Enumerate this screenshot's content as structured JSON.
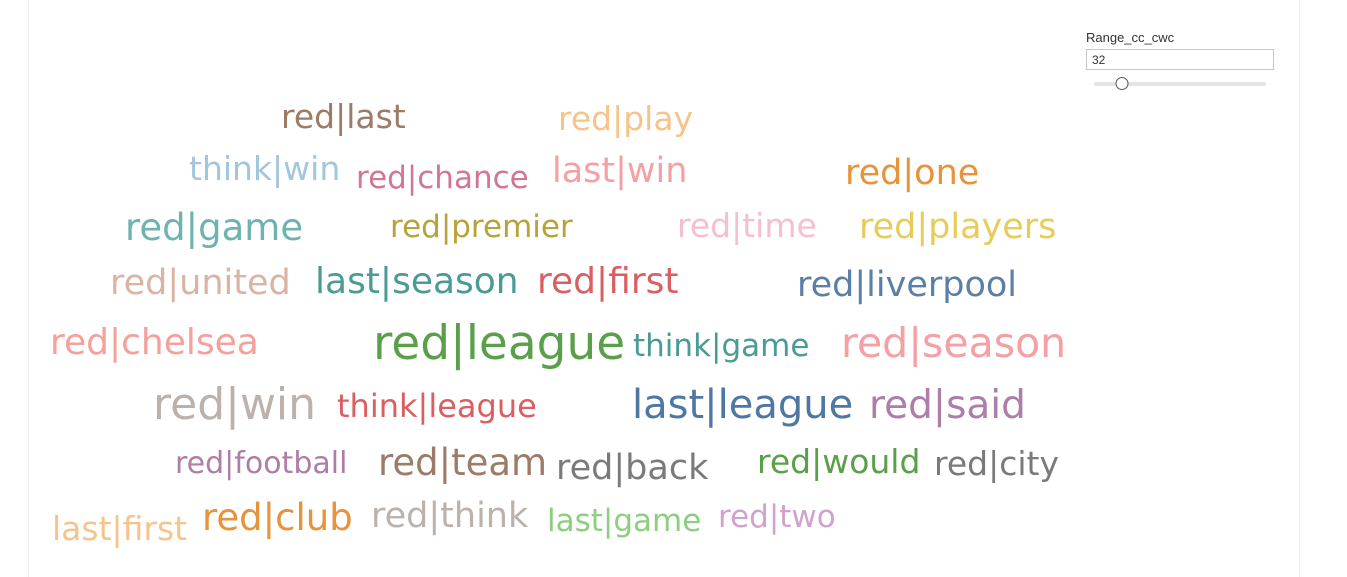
{
  "parameter": {
    "title": "Range_cc_cwc",
    "value": "32",
    "slider_fraction": 0.16
  },
  "word_cloud": {
    "words": [
      {
        "text": "red|last",
        "color": "#9c7b68"
      },
      {
        "text": "red|play",
        "color": "#f6c48a"
      },
      {
        "text": "think|win",
        "color": "#a3c6df"
      },
      {
        "text": "red|chance",
        "color": "#d27596"
      },
      {
        "text": "last|win",
        "color": "#f4a0a4"
      },
      {
        "text": "red|one",
        "color": "#e8923a"
      },
      {
        "text": "red|game",
        "color": "#6fb3ae"
      },
      {
        "text": "red|premier",
        "color": "#b7a33b"
      },
      {
        "text": "red|time",
        "color": "#f6bfcd"
      },
      {
        "text": "red|players",
        "color": "#e8cc5a"
      },
      {
        "text": "red|united",
        "color": "#d9b4a4"
      },
      {
        "text": "last|season",
        "color": "#4a9a95"
      },
      {
        "text": "red|first",
        "color": "#d95f63"
      },
      {
        "text": "red|liverpool",
        "color": "#5b7fa6"
      },
      {
        "text": "red|chelsea",
        "color": "#f4a19c"
      },
      {
        "text": "red|league",
        "color": "#5a9f4a"
      },
      {
        "text": "think|game",
        "color": "#4a9a95"
      },
      {
        "text": "red|season",
        "color": "#f4a0a4"
      },
      {
        "text": "red|win",
        "color": "#bcb1ab"
      },
      {
        "text": "think|league",
        "color": "#d95f63"
      },
      {
        "text": "last|league",
        "color": "#4e77a3"
      },
      {
        "text": "red|said",
        "color": "#ad7ea7"
      },
      {
        "text": "red|football",
        "color": "#ad7ea7"
      },
      {
        "text": "red|team",
        "color": "#9c7b68"
      },
      {
        "text": "red|back",
        "color": "#7a7a7a"
      },
      {
        "text": "red|would",
        "color": "#5a9f4a"
      },
      {
        "text": "red|city",
        "color": "#7a7a7a"
      },
      {
        "text": "last|first",
        "color": "#f6c48a"
      },
      {
        "text": "red|club",
        "color": "#e8923a"
      },
      {
        "text": "red|think",
        "color": "#bcb1ab"
      },
      {
        "text": "last|game",
        "color": "#8ccf7e"
      },
      {
        "text": "red|two",
        "color": "#d0a2cc"
      }
    ]
  }
}
